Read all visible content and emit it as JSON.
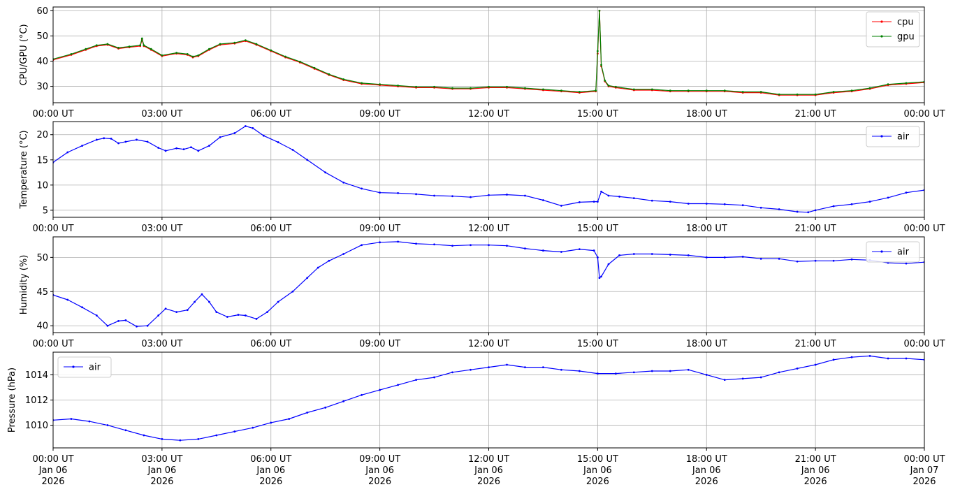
{
  "chart_data": [
    {
      "type": "line",
      "ylabel": "CPU/GPU (°C)",
      "ylim": [
        23.5,
        61.5
      ],
      "yticks": [
        30,
        40,
        50,
        60
      ],
      "xlim": [
        0,
        24
      ],
      "xticks": [
        0,
        3,
        6,
        9,
        12,
        15,
        18,
        21,
        24
      ],
      "xtick_labels": [
        "00:00 UT",
        "03:00 UT",
        "06:00 UT",
        "09:00 UT",
        "12:00 UT",
        "15:00 UT",
        "18:00 UT",
        "21:00 UT",
        "00:00 UT"
      ],
      "grid": true,
      "legend": "upper-right",
      "series": [
        {
          "name": "cpu",
          "color": "#ff0000",
          "x": [
            0,
            0.5,
            0.9,
            1.2,
            1.5,
            1.8,
            2.1,
            2.4,
            2.45,
            2.5,
            2.7,
            3.0,
            3.4,
            3.7,
            3.85,
            4.0,
            4.3,
            4.6,
            5.0,
            5.3,
            5.6,
            6.0,
            6.4,
            6.8,
            7.2,
            7.6,
            8.0,
            8.5,
            9.0,
            9.5,
            10.0,
            10.5,
            11.0,
            11.5,
            12.0,
            12.5,
            13.0,
            13.5,
            14.0,
            14.5,
            14.95,
            15.0,
            15.05,
            15.1,
            15.2,
            15.3,
            15.5,
            16.0,
            16.5,
            17.0,
            17.5,
            18.0,
            18.5,
            19.0,
            19.5,
            20.0,
            20.5,
            21.0,
            21.5,
            22.0,
            22.5,
            23.0,
            23.5,
            24.0
          ],
          "values": [
            40.5,
            42.5,
            44.5,
            46.0,
            46.5,
            45.0,
            45.5,
            46.0,
            48.5,
            46.0,
            44.5,
            42.0,
            43.0,
            42.5,
            41.5,
            42.0,
            44.5,
            46.5,
            47.0,
            48.0,
            46.5,
            44.0,
            41.5,
            39.5,
            37.0,
            34.5,
            32.5,
            31.0,
            30.5,
            30.0,
            29.5,
            29.5,
            29.0,
            29.0,
            29.5,
            29.5,
            29.0,
            28.5,
            28.0,
            27.5,
            28.0,
            43.0,
            60.0,
            38.0,
            32.0,
            30.0,
            29.5,
            28.5,
            28.5,
            28.0,
            28.0,
            28.0,
            28.0,
            27.5,
            27.5,
            26.5,
            26.5,
            26.5,
            27.5,
            28.0,
            29.0,
            30.5,
            31.0,
            31.5
          ]
        },
        {
          "name": "gpu",
          "color": "#008000",
          "x": [
            0,
            0.5,
            0.9,
            1.2,
            1.5,
            1.8,
            2.1,
            2.4,
            2.45,
            2.5,
            2.7,
            3.0,
            3.4,
            3.7,
            3.85,
            4.0,
            4.3,
            4.6,
            5.0,
            5.3,
            5.6,
            6.0,
            6.4,
            6.8,
            7.2,
            7.6,
            8.0,
            8.5,
            9.0,
            9.5,
            10.0,
            10.5,
            11.0,
            11.5,
            12.0,
            12.5,
            13.0,
            13.5,
            14.0,
            14.5,
            14.95,
            15.0,
            15.05,
            15.1,
            15.2,
            15.3,
            15.5,
            16.0,
            16.5,
            17.0,
            17.5,
            18.0,
            18.5,
            19.0,
            19.5,
            20.0,
            20.5,
            21.0,
            21.5,
            22.0,
            22.5,
            23.0,
            23.5,
            24.0
          ],
          "values": [
            40.8,
            42.8,
            44.8,
            46.3,
            46.8,
            45.3,
            45.8,
            46.3,
            49.0,
            46.3,
            44.8,
            42.3,
            43.3,
            42.8,
            41.8,
            42.3,
            44.8,
            46.8,
            47.3,
            48.3,
            46.8,
            44.3,
            41.8,
            39.8,
            37.3,
            34.8,
            32.8,
            31.3,
            30.8,
            30.3,
            29.8,
            29.8,
            29.3,
            29.3,
            29.8,
            29.8,
            29.3,
            28.8,
            28.3,
            27.8,
            28.3,
            44.0,
            60.0,
            38.5,
            32.3,
            30.3,
            29.8,
            28.8,
            28.8,
            28.3,
            28.3,
            28.3,
            28.3,
            27.8,
            27.8,
            26.8,
            26.8,
            26.8,
            27.8,
            28.3,
            29.3,
            30.8,
            31.3,
            31.8
          ]
        }
      ]
    },
    {
      "type": "line",
      "ylabel": "Temperature (°C)",
      "ylim": [
        3.6,
        22.6
      ],
      "yticks": [
        5,
        10,
        15,
        20
      ],
      "xlim": [
        0,
        24
      ],
      "xticks": [
        0,
        3,
        6,
        9,
        12,
        15,
        18,
        21,
        24
      ],
      "xtick_labels": [
        "00:00 UT",
        "03:00 UT",
        "06:00 UT",
        "09:00 UT",
        "12:00 UT",
        "15:00 UT",
        "18:00 UT",
        "21:00 UT",
        "00:00 UT"
      ],
      "grid": true,
      "legend": "upper-right",
      "series": [
        {
          "name": "air",
          "color": "#0000ff",
          "x": [
            0,
            0.4,
            0.8,
            1.2,
            1.4,
            1.6,
            1.8,
            2.0,
            2.3,
            2.6,
            2.9,
            3.1,
            3.4,
            3.6,
            3.8,
            4.0,
            4.3,
            4.6,
            5.0,
            5.3,
            5.5,
            5.8,
            6.2,
            6.6,
            7.0,
            7.5,
            8.0,
            8.5,
            9.0,
            9.5,
            10.0,
            10.5,
            11.0,
            11.5,
            12.0,
            12.5,
            13.0,
            13.5,
            14.0,
            14.5,
            14.9,
            15.0,
            15.1,
            15.3,
            15.6,
            16.0,
            16.5,
            17.0,
            17.5,
            18.0,
            18.5,
            19.0,
            19.5,
            20.0,
            20.5,
            20.8,
            21.0,
            21.5,
            22.0,
            22.5,
            23.0,
            23.5,
            24.0
          ],
          "values": [
            14.5,
            16.5,
            17.8,
            19.0,
            19.3,
            19.2,
            18.3,
            18.6,
            19.0,
            18.6,
            17.4,
            16.8,
            17.3,
            17.1,
            17.5,
            16.8,
            17.8,
            19.5,
            20.3,
            21.7,
            21.3,
            19.8,
            18.5,
            17.0,
            15.0,
            12.5,
            10.5,
            9.3,
            8.5,
            8.4,
            8.2,
            7.9,
            7.8,
            7.6,
            8.0,
            8.1,
            7.9,
            7.0,
            5.9,
            6.6,
            6.7,
            6.7,
            8.7,
            7.9,
            7.7,
            7.4,
            6.9,
            6.7,
            6.3,
            6.3,
            6.2,
            6.0,
            5.5,
            5.2,
            4.7,
            4.6,
            5.0,
            5.8,
            6.2,
            6.7,
            7.5,
            8.5,
            9.0
          ]
        }
      ]
    },
    {
      "type": "line",
      "ylabel": "Humidity (%)",
      "ylim": [
        39,
        53
      ],
      "yticks": [
        40,
        45,
        50
      ],
      "xlim": [
        0,
        24
      ],
      "xticks": [
        0,
        3,
        6,
        9,
        12,
        15,
        18,
        21,
        24
      ],
      "xtick_labels": [
        "00:00 UT",
        "03:00 UT",
        "06:00 UT",
        "09:00 UT",
        "12:00 UT",
        "15:00 UT",
        "18:00 UT",
        "21:00 UT",
        "00:00 UT"
      ],
      "grid": true,
      "legend": "upper-right",
      "series": [
        {
          "name": "air",
          "color": "#0000ff",
          "x": [
            0,
            0.4,
            0.8,
            1.2,
            1.5,
            1.8,
            2.0,
            2.3,
            2.6,
            2.9,
            3.1,
            3.4,
            3.7,
            3.9,
            4.1,
            4.3,
            4.5,
            4.8,
            5.1,
            5.3,
            5.6,
            5.9,
            6.2,
            6.6,
            7.0,
            7.3,
            7.6,
            8.0,
            8.5,
            9.0,
            9.5,
            10.0,
            10.5,
            11.0,
            11.5,
            12.0,
            12.5,
            13.0,
            13.5,
            14.0,
            14.5,
            14.9,
            15.0,
            15.05,
            15.1,
            15.3,
            15.6,
            16.0,
            16.5,
            17.0,
            17.5,
            18.0,
            18.5,
            19.0,
            19.5,
            20.0,
            20.5,
            21.0,
            21.5,
            22.0,
            22.5,
            23.0,
            23.5,
            24.0
          ],
          "values": [
            44.5,
            43.8,
            42.7,
            41.5,
            40.0,
            40.7,
            40.8,
            39.9,
            40.0,
            41.5,
            42.5,
            42.0,
            42.3,
            43.5,
            44.6,
            43.5,
            42.0,
            41.3,
            41.6,
            41.5,
            41.0,
            42.0,
            43.5,
            45.0,
            47.0,
            48.5,
            49.5,
            50.5,
            51.8,
            52.2,
            52.3,
            52.0,
            51.9,
            51.7,
            51.8,
            51.8,
            51.7,
            51.3,
            51.0,
            50.8,
            51.2,
            51.0,
            50.0,
            47.0,
            47.2,
            49.0,
            50.3,
            50.5,
            50.5,
            50.4,
            50.3,
            50.0,
            50.0,
            50.1,
            49.8,
            49.8,
            49.4,
            49.5,
            49.5,
            49.7,
            49.6,
            49.2,
            49.1,
            49.3
          ]
        }
      ]
    },
    {
      "type": "line",
      "ylabel": "Pressure (hPa)",
      "ylim": [
        1008.2,
        1015.8
      ],
      "yticks": [
        1010,
        1012,
        1014
      ],
      "xlim": [
        0,
        24
      ],
      "xticks": [
        0,
        3,
        6,
        9,
        12,
        15,
        18,
        21,
        24
      ],
      "xtick_labels": [
        "00:00 UT\nJan 06\n2026",
        "03:00 UT\nJan 06\n2026",
        "06:00 UT\nJan 06\n2026",
        "09:00 UT\nJan 06\n2026",
        "12:00 UT\nJan 06\n2026",
        "15:00 UT\nJan 06\n2026",
        "18:00 UT\nJan 06\n2026",
        "21:00 UT\nJan 06\n2026",
        "00:00 UT\nJan 07\n2026"
      ],
      "grid": true,
      "legend": "upper-left",
      "series": [
        {
          "name": "air",
          "color": "#0000ff",
          "x": [
            0,
            0.5,
            1.0,
            1.5,
            2.0,
            2.5,
            3.0,
            3.5,
            4.0,
            4.5,
            5.0,
            5.5,
            6.0,
            6.5,
            7.0,
            7.5,
            8.0,
            8.5,
            9.0,
            9.5,
            10.0,
            10.5,
            11.0,
            11.5,
            12.0,
            12.5,
            13.0,
            13.5,
            14.0,
            14.5,
            15.0,
            15.5,
            16.0,
            16.5,
            17.0,
            17.5,
            18.0,
            18.5,
            19.0,
            19.5,
            20.0,
            20.5,
            21.0,
            21.5,
            22.0,
            22.5,
            23.0,
            23.5,
            24.0
          ],
          "values": [
            1010.4,
            1010.5,
            1010.3,
            1010.0,
            1009.6,
            1009.2,
            1008.9,
            1008.8,
            1008.9,
            1009.2,
            1009.5,
            1009.8,
            1010.2,
            1010.5,
            1011.0,
            1011.4,
            1011.9,
            1012.4,
            1012.8,
            1013.2,
            1013.6,
            1013.8,
            1014.2,
            1014.4,
            1014.6,
            1014.8,
            1014.6,
            1014.6,
            1014.4,
            1014.3,
            1014.1,
            1014.1,
            1014.2,
            1014.3,
            1014.3,
            1014.4,
            1014.0,
            1013.6,
            1013.7,
            1013.8,
            1014.2,
            1014.5,
            1014.8,
            1015.2,
            1015.4,
            1015.5,
            1015.3,
            1015.3,
            1015.2
          ]
        }
      ]
    }
  ]
}
